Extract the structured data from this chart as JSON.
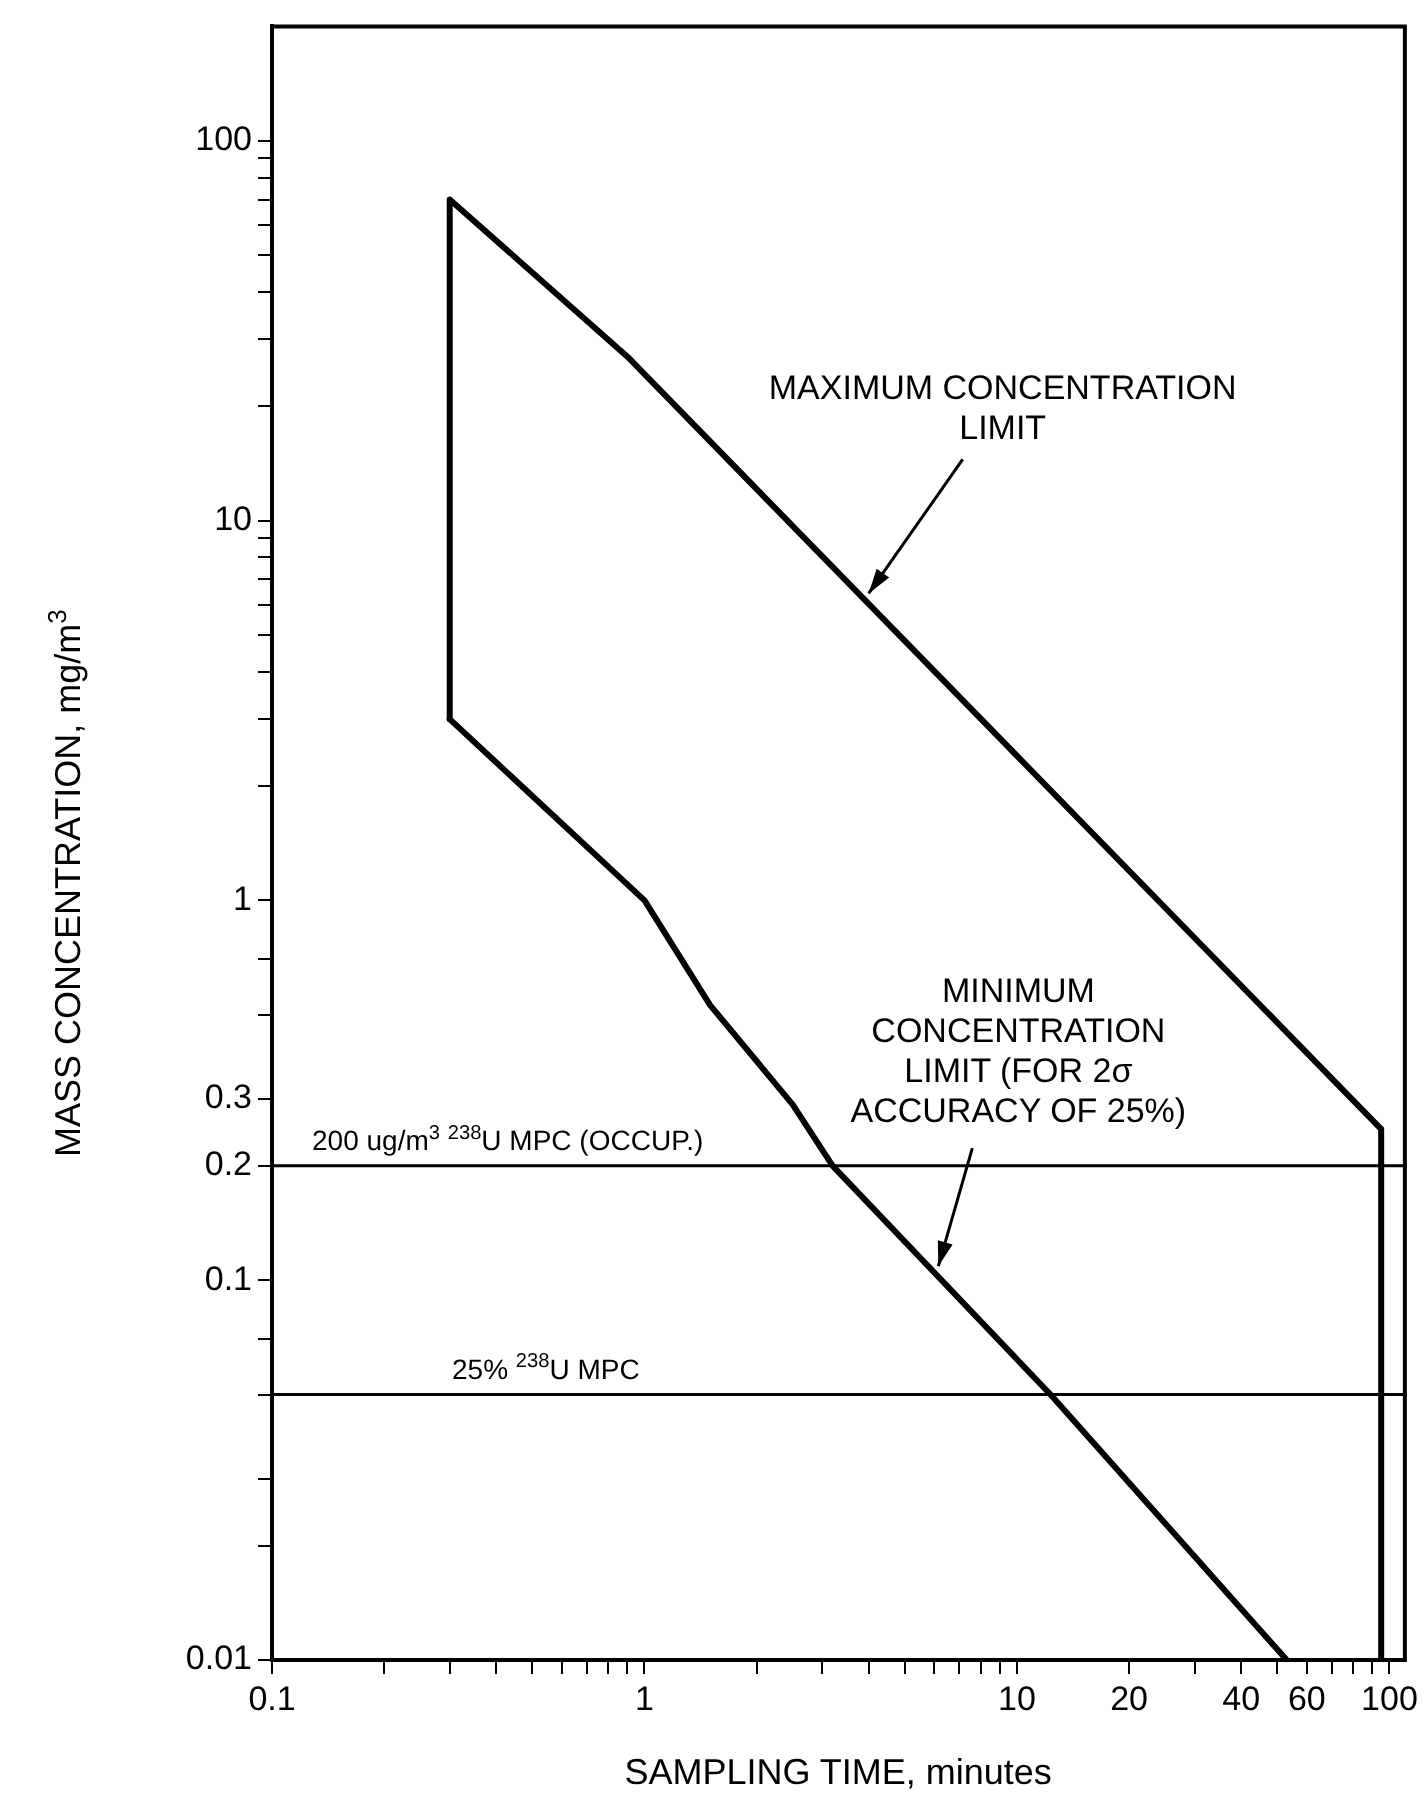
{
  "chart_data": {
    "type": "line",
    "xlabel": "SAMPLING TIME, minutes",
    "ylabel": "MASS CONCENTRATION, mg/m$^{3}$",
    "log": "xy",
    "xlim": [
      0.1,
      110
    ],
    "ylim": [
      0.01,
      200
    ],
    "xticks": [
      0.1,
      {
        "value": 0.2,
        "label": null
      },
      {
        "value": 0.3,
        "label": null
      },
      {
        "value": 0.4,
        "label": null
      },
      {
        "value": 0.5,
        "label": null
      },
      {
        "value": 0.6,
        "label": null
      },
      {
        "value": 0.7,
        "label": null
      },
      {
        "value": 0.8,
        "label": null
      },
      {
        "value": 0.9,
        "label": null
      },
      1,
      {
        "value": 2,
        "label": null
      },
      {
        "value": 3,
        "label": null
      },
      {
        "value": 4,
        "label": null
      },
      {
        "value": 5,
        "label": null
      },
      {
        "value": 6,
        "label": null
      },
      {
        "value": 7,
        "label": null
      },
      {
        "value": 8,
        "label": null
      },
      {
        "value": 9,
        "label": null
      },
      10,
      20,
      {
        "value": 30,
        "label": null
      },
      40,
      {
        "value": 50,
        "label": null
      },
      60,
      {
        "value": 70,
        "label": null
      },
      {
        "value": 80,
        "label": null
      },
      {
        "value": 90,
        "label": null
      },
      100
    ],
    "yticks": [
      0.01,
      {
        "value": 0.02,
        "label": null
      },
      {
        "value": 0.03,
        "label": null
      },
      {
        "value": 0.05,
        "label": null
      },
      {
        "value": 0.07,
        "label": null
      },
      0.1,
      0.2,
      0.3,
      {
        "value": 0.5,
        "label": null
      },
      {
        "value": 0.7,
        "label": null
      },
      1,
      {
        "value": 2,
        "label": null
      },
      {
        "value": 3,
        "label": null
      },
      {
        "value": 4,
        "label": null
      },
      {
        "value": 5,
        "label": null
      },
      {
        "value": 6,
        "label": null
      },
      {
        "value": 7,
        "label": null
      },
      {
        "value": 8,
        "label": null
      },
      {
        "value": 9,
        "label": null
      },
      10,
      {
        "value": 20,
        "label": null
      },
      {
        "value": 30,
        "label": null
      },
      {
        "value": 40,
        "label": null
      },
      {
        "value": 50,
        "label": null
      },
      {
        "value": 60,
        "label": null
      },
      {
        "value": 70,
        "label": null
      },
      {
        "value": 80,
        "label": null
      },
      {
        "value": 90,
        "label": null
      },
      100
    ],
    "series": [
      {
        "color": "#000000",
        "x": [
          0.3,
          0.3,
          0.9,
          95,
          95
        ],
        "values": [
          3,
          70,
          27,
          0.25,
          0.01
        ]
      },
      {
        "color": "#000000",
        "x": [
          0.3,
          1,
          1.5,
          2.5,
          3.2,
          12.3,
          53
        ],
        "values": [
          3,
          1,
          0.53,
          0.29,
          0.2,
          0.05,
          0.01
        ]
      }
    ],
    "ref_lines": [
      {
        "axis": "y",
        "value": 0.2,
        "label": "200 ug/m$^{3}$ $^{238}$U MPC (OCCUP.)",
        "color": "#000000"
      },
      {
        "axis": "y",
        "value": 0.05,
        "label": "25% $^{238}$U MPC",
        "color": "#000000"
      }
    ],
    "annotations": [
      {
        "text": "MAXIMUM CONCENTRATION\nLIMIT",
        "x": 3.9,
        "y": 6.2
      },
      {
        "text": "MINIMUM\nCONCENTRATION\nLIMIT (FOR 2σ\nACCURACY OF 25%)",
        "x": 6,
        "y": 0.105
      }
    ],
    "marker": "none",
    "line_style": "solid",
    "legend": false
  }
}
